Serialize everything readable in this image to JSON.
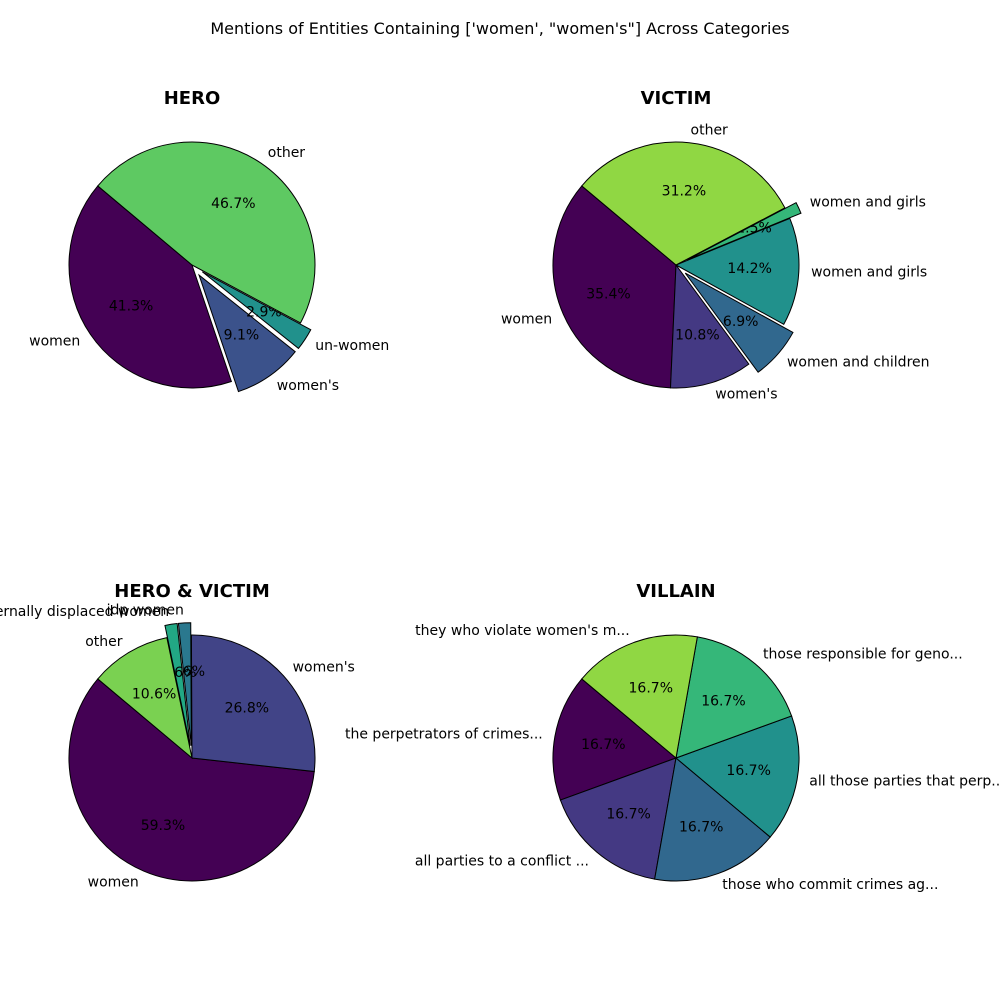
{
  "figure_title": "Mentions of Entities Containing ['women', \"women's\"] Across Categories",
  "chart_data": [
    {
      "type": "pie",
      "title": "HERO",
      "start_angle": 140,
      "slices": [
        {
          "label": "women",
          "value": 41.3,
          "pct": "41.3%",
          "color": "#440154",
          "explode": 0
        },
        {
          "label": "women's",
          "value": 9.1,
          "pct": "9.1%",
          "color": "#3b528b",
          "explode": 0.1
        },
        {
          "label": "un-women",
          "value": 2.9,
          "pct": "2.9%",
          "color": "#21918c",
          "explode": 0.1
        },
        {
          "label": "other",
          "value": 46.7,
          "pct": "46.7%",
          "color": "#5ec962",
          "explode": 0
        }
      ]
    },
    {
      "type": "pie",
      "title": "VICTIM",
      "start_angle": 140,
      "slices": [
        {
          "label": "women",
          "value": 35.4,
          "pct": "35.4%",
          "color": "#440154",
          "explode": 0
        },
        {
          "label": "women's",
          "value": 10.8,
          "pct": "10.8%",
          "color": "#443983",
          "explode": 0
        },
        {
          "label": "women and children",
          "value": 6.9,
          "pct": "6.9%",
          "color": "#31688e",
          "explode": 0.1
        },
        {
          "label": "women and girls",
          "value": 14.2,
          "pct": "14.2%",
          "color": "#21918c",
          "explode": 0
        },
        {
          "label": "women and  girls",
          "value": 1.5,
          "pct": "1.5%",
          "color": "#35b779",
          "explode": 0.1
        },
        {
          "label": "other",
          "value": 31.2,
          "pct": "31.2%",
          "color": "#90d743",
          "explode": 0
        }
      ]
    },
    {
      "type": "pie",
      "title": "HERO & VICTIM",
      "start_angle": 140,
      "slices": [
        {
          "label": "women",
          "value": 59.3,
          "pct": "59.3%",
          "color": "#440154",
          "explode": 0
        },
        {
          "label": "women's",
          "value": 26.8,
          "pct": "26.8%",
          "color": "#414487",
          "explode": 0
        },
        {
          "label": "idp women",
          "value": 1.6,
          "pct": "1.6%",
          "color": "#2a788e",
          "explode": 0.1
        },
        {
          "label": "internally displaced women",
          "value": 1.6,
          "pct": "1.6%",
          "color": "#22a884",
          "explode": 0.1
        },
        {
          "label": "other",
          "value": 10.6,
          "pct": "10.6%",
          "color": "#7ad151",
          "explode": 0
        }
      ]
    },
    {
      "type": "pie",
      "title": "VILLAIN",
      "start_angle": 140,
      "slices": [
        {
          "label": "the  perpetrators of crimes...",
          "value": 16.7,
          "pct": "16.7%",
          "color": "#440154",
          "explode": 0
        },
        {
          "label": "all parties to a  conflict ...",
          "value": 16.7,
          "pct": "16.7%",
          "color": "#443983",
          "explode": 0
        },
        {
          "label": "those who  commit crimes ag...",
          "value": 16.7,
          "pct": "16.7%",
          "color": "#31688e",
          "explode": 0
        },
        {
          "label": "all those parties that perp...",
          "value": 16.7,
          "pct": "16.7%",
          "color": "#21918c",
          "explode": 0
        },
        {
          "label": "those  responsible for geno...",
          "value": 16.7,
          "pct": "16.7%",
          "color": "#35b779",
          "explode": 0
        },
        {
          "label": "they who violate  women's m...",
          "value": 16.7,
          "pct": "16.7%",
          "color": "#90d743",
          "explode": 0
        }
      ]
    }
  ]
}
